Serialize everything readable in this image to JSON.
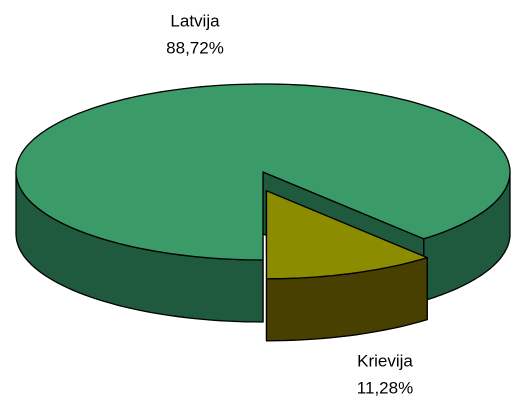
{
  "chart_data": {
    "type": "pie3d",
    "categories": [
      "Latvija",
      "Krievija"
    ],
    "values": [
      88.72,
      11.28
    ],
    "value_labels": [
      "88,72%",
      "11,28%"
    ],
    "colors": [
      "#3a9a68",
      "#8c8c00"
    ],
    "side_colors": [
      "#1f5a3e",
      "#474000"
    ],
    "exploded": [
      false,
      true
    ]
  }
}
